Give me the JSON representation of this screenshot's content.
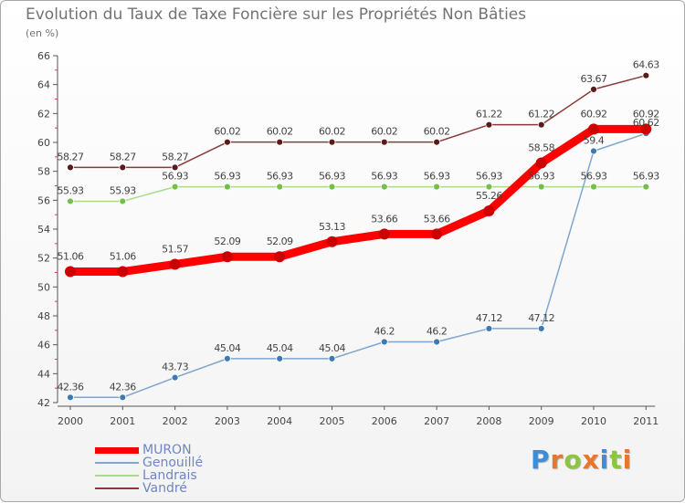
{
  "chart_data": {
    "type": "line",
    "title": "Evolution du Taux de Taxe Foncière sur les Propriétés Non Bâties",
    "subtitle": "(en %)",
    "categories": [
      "2000",
      "2001",
      "2002",
      "2003",
      "2004",
      "2005",
      "2006",
      "2007",
      "2008",
      "2009",
      "2010",
      "2011"
    ],
    "ylim": [
      42,
      66
    ],
    "yticks": [
      42,
      44,
      46,
      48,
      50,
      52,
      54,
      56,
      58,
      60,
      62,
      64,
      66
    ],
    "grid": false,
    "series": [
      {
        "name": "Vandré",
        "color": "#8b3a3a",
        "marker": "#5a1a1a",
        "bold": false,
        "values": [
          58.27,
          58.27,
          58.27,
          60.02,
          60.02,
          60.02,
          60.02,
          60.02,
          61.22,
          61.22,
          63.67,
          64.63
        ],
        "labels": [
          "58.27",
          "58.27",
          "58.27",
          "60.02",
          "60.02",
          "60.02",
          "60.02",
          "60.02",
          "61.22",
          "61.22",
          "63.67",
          "64.63"
        ]
      },
      {
        "name": "Landrais",
        "color": "#a8dc8c",
        "marker": "#72c04a",
        "bold": false,
        "values": [
          55.93,
          55.93,
          56.93,
          56.93,
          56.93,
          56.93,
          56.93,
          56.93,
          56.93,
          56.93,
          56.93,
          56.93
        ],
        "labels": [
          "55.93",
          "55.93",
          "56.93",
          "56.93",
          "56.93",
          "56.93",
          "56.93",
          "56.93",
          "56.93",
          "56.93",
          "56.93",
          "56.93"
        ]
      },
      {
        "name": "Genouillé",
        "color": "#7fa5cf",
        "marker": "#3c7ab6",
        "bold": false,
        "values": [
          42.36,
          42.36,
          43.73,
          45.04,
          45.04,
          45.04,
          46.2,
          46.2,
          47.12,
          47.12,
          59.4,
          60.62
        ],
        "labels": [
          "42.36",
          "42.36",
          "43.73",
          "45.04",
          "45.04",
          "45.04",
          "46.2",
          "46.2",
          "47.12",
          "47.12",
          "59.4",
          "60.62"
        ]
      },
      {
        "name": "MURON",
        "color": "#ff0000",
        "marker": "#cc0000",
        "bold": true,
        "values": [
          51.06,
          51.06,
          51.57,
          52.09,
          52.09,
          53.13,
          53.66,
          53.66,
          55.26,
          58.58,
          60.92,
          60.92
        ],
        "labels": [
          "51.06",
          "51.06",
          "51.57",
          "52.09",
          "52.09",
          "53.13",
          "53.66",
          "53.66",
          "55.26",
          "58.58",
          "60.92",
          "60.92"
        ]
      }
    ],
    "legend": {
      "position": "bottom-left",
      "entries": [
        "MURON",
        "Genouillé",
        "Landrais",
        "Vandré"
      ]
    }
  },
  "logo": {
    "letters": [
      "P",
      "r",
      "o",
      "x",
      "i",
      "t",
      "i"
    ],
    "colors": [
      "#3a8fd8",
      "#e8762b",
      "#8cc63f",
      "#e8762b",
      "#3a8fd8",
      "#8cc63f",
      "#e8762b"
    ]
  }
}
